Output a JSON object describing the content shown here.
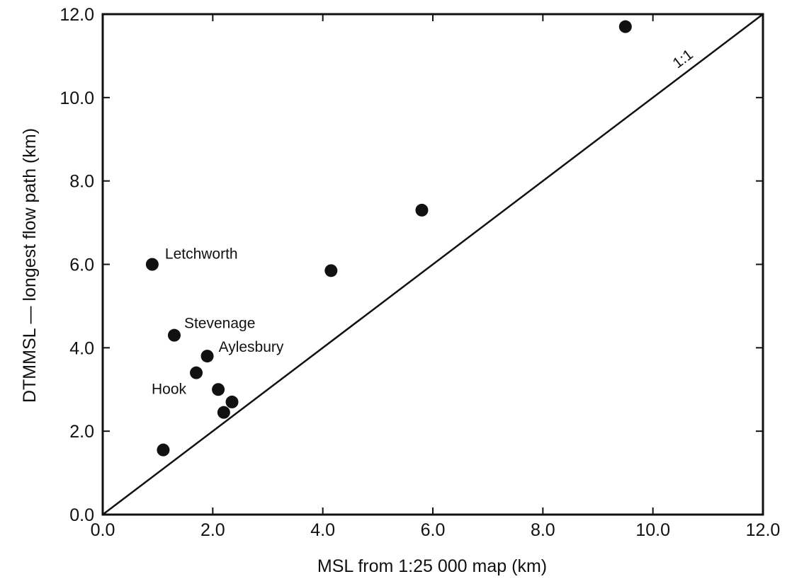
{
  "chart_data": {
    "type": "scatter",
    "xlabel": "MSL from 1:25 000 map (km)",
    "ylabel": "DTMMSL — longest flow path (km)",
    "xlim": [
      0,
      12
    ],
    "ylim": [
      0,
      12
    ],
    "x_ticks": [
      "0.0",
      "2.0",
      "4.0",
      "6.0",
      "8.0",
      "10.0",
      "12.0"
    ],
    "y_ticks": [
      "0.0",
      "2.0",
      "4.0",
      "6.0",
      "8.0",
      "10.0",
      "12.0"
    ],
    "grid": false,
    "reference_line": {
      "label": "1:1",
      "from": [
        0,
        0
      ],
      "to": [
        12,
        12
      ]
    },
    "points": [
      {
        "x": 0.9,
        "y": 6.0,
        "label": "Letchworth"
      },
      {
        "x": 1.3,
        "y": 4.3,
        "label": "Stevenage"
      },
      {
        "x": 1.9,
        "y": 3.8,
        "label": "Aylesbury"
      },
      {
        "x": 1.7,
        "y": 3.4,
        "label": "Hook"
      },
      {
        "x": 2.1,
        "y": 3.0,
        "label": ""
      },
      {
        "x": 2.35,
        "y": 2.7,
        "label": ""
      },
      {
        "x": 2.2,
        "y": 2.45,
        "label": ""
      },
      {
        "x": 1.1,
        "y": 1.55,
        "label": ""
      },
      {
        "x": 4.15,
        "y": 5.85,
        "label": ""
      },
      {
        "x": 5.8,
        "y": 7.3,
        "label": ""
      },
      {
        "x": 9.5,
        "y": 11.7,
        "label": ""
      }
    ]
  }
}
